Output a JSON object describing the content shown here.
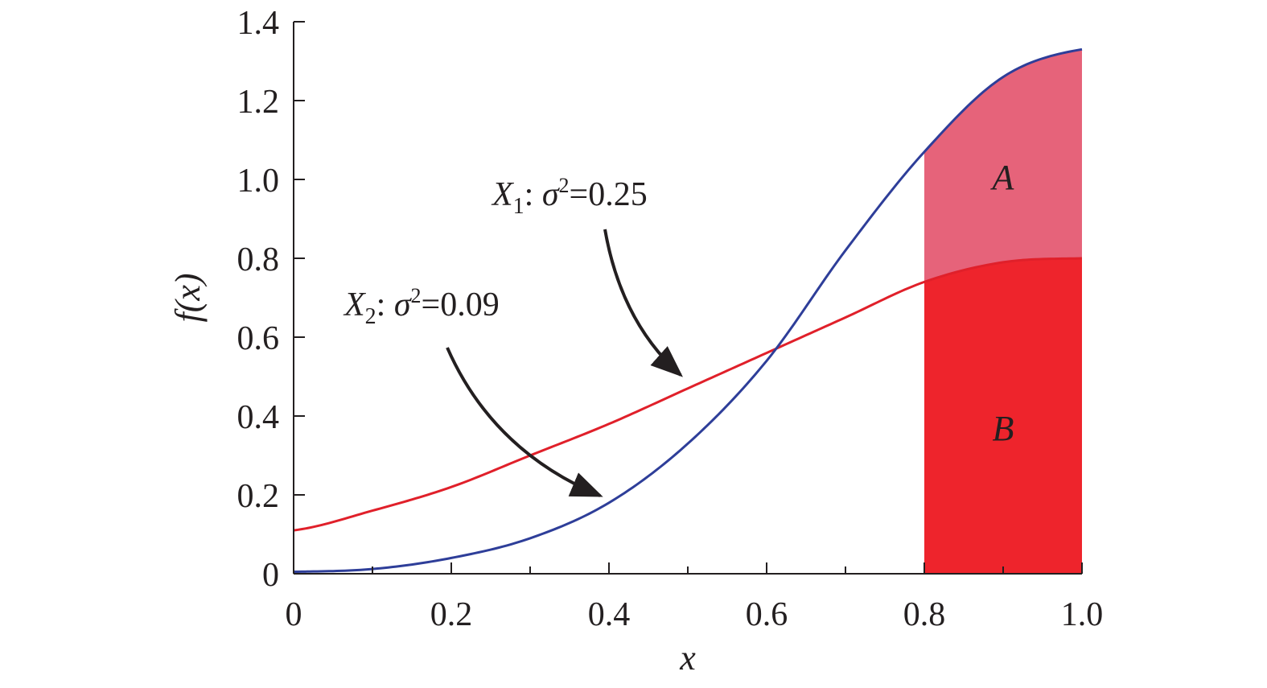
{
  "chart_data": {
    "type": "line",
    "xlabel": "x",
    "ylabel": "f(x)",
    "xlim": [
      0,
      1.0
    ],
    "ylim": [
      0,
      1.4
    ],
    "x_ticks": [
      "0",
      "0.2",
      "0.4",
      "0.6",
      "0.8",
      "1.0"
    ],
    "y_ticks": [
      "0",
      "0.2",
      "0.4",
      "0.6",
      "0.8",
      "1.0",
      "1.2",
      "1.4"
    ],
    "grid": false,
    "x": [
      0,
      0.1,
      0.2,
      0.3,
      0.4,
      0.5,
      0.6,
      0.7,
      0.8,
      0.9,
      1.0
    ],
    "series": [
      {
        "name": "X1: σ2=0.25",
        "name_parts": {
          "var": "X",
          "sub": "1",
          "sep": ": ",
          "sigma": "σ",
          "sup": "2",
          "value": "=0.25"
        },
        "color": "#e0202a",
        "values": [
          0.11,
          0.16,
          0.22,
          0.3,
          0.38,
          0.47,
          0.56,
          0.65,
          0.74,
          0.79,
          0.8
        ]
      },
      {
        "name": "X2: σ2=0.09",
        "name_parts": {
          "var": "X",
          "sub": "2",
          "sep": ": ",
          "sigma": "σ",
          "sup": "2",
          "value": "=0.09"
        },
        "color": "#2e3e99",
        "values": [
          0.005,
          0.012,
          0.04,
          0.09,
          0.18,
          0.33,
          0.54,
          0.82,
          1.07,
          1.26,
          1.33
        ]
      }
    ],
    "regions": [
      {
        "label": "A",
        "x_from": 0.8,
        "x_to": 1.0,
        "between": [
          "X2: σ2=0.09",
          "X1: σ2=0.25"
        ],
        "color": "#e6637a"
      },
      {
        "label": "B",
        "x_from": 0.8,
        "x_to": 1.0,
        "between": [
          "axis",
          "X1: σ2=0.25"
        ],
        "color": "#ee242c"
      }
    ]
  }
}
